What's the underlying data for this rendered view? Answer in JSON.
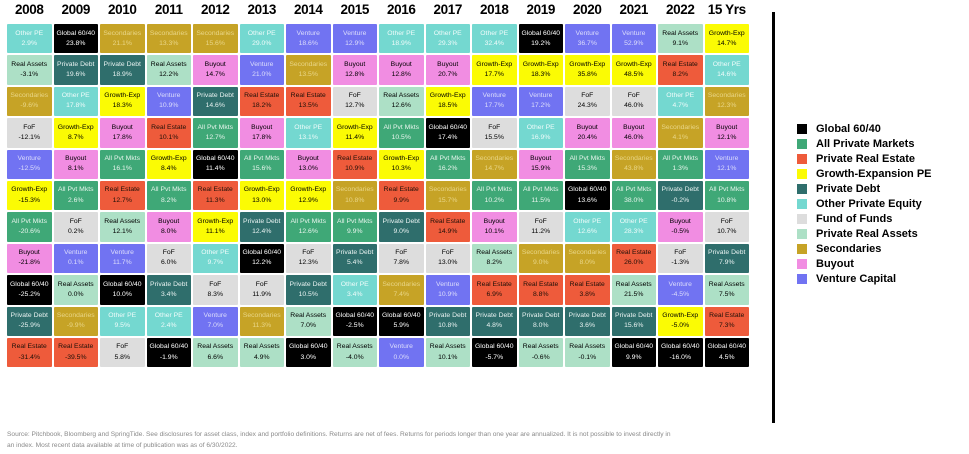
{
  "chart_data": {
    "type": "table",
    "description": "Periodic-table style matrix of private market asset class returns ranked best-to-worst per year",
    "asset_styles": {
      "global": {
        "short": "Global 60/40",
        "legend": "Global 60/40",
        "bg": "#000000",
        "fg": "#ffffff"
      },
      "allpvt": {
        "short": "All Pvt Mkts",
        "legend": "All Private Markets",
        "bg": "#3fa877",
        "fg": "#e7f4ec"
      },
      "realestate": {
        "short": "Real Estate",
        "legend": "Private Real Estate",
        "bg": "#ee5b3b",
        "fg": "#1e1008"
      },
      "growth": {
        "short": "Growth-Exp",
        "legend": "Growth-Expansion PE",
        "bg": "#fbfb04",
        "fg": "#000000"
      },
      "privdebt": {
        "short": "Private Debt",
        "legend": "Private Debt",
        "bg": "#2f6e6c",
        "fg": "#e8f2f1"
      },
      "otherpe": {
        "short": "Other PE",
        "legend": "Other Private Equity",
        "bg": "#74d8d0",
        "fg": "#effbfa"
      },
      "fof": {
        "short": "FoF",
        "legend": "Fund of Funds",
        "bg": "#dddddd",
        "fg": "#000000"
      },
      "realassets": {
        "short": "Real Assets",
        "legend": "Private Real Assets",
        "bg": "#ade0c6",
        "fg": "#000000"
      },
      "secondaries": {
        "short": "Secondaries",
        "legend": "Secondaries",
        "bg": "#c6a326",
        "fg": "#e9d687"
      },
      "buyout": {
        "short": "Buyout",
        "legend": "Buyout",
        "bg": "#f18de2",
        "fg": "#000000"
      },
      "venture": {
        "short": "Venture",
        "legend": "Venture Capital",
        "bg": "#7173f2",
        "fg": "#dcddfb"
      }
    },
    "columns": [
      {
        "label": "2008",
        "cells": [
          [
            "otherpe",
            "2.9%"
          ],
          [
            "realassets",
            "-3.1%"
          ],
          [
            "secondaries",
            "-9.6%"
          ],
          [
            "fof",
            "-12.1%"
          ],
          [
            "venture",
            "-12.5%"
          ],
          [
            "growth",
            "-15.3%"
          ],
          [
            "allpvt",
            "-20.6%"
          ],
          [
            "buyout",
            "-21.8%"
          ],
          [
            "global",
            "-25.2%"
          ],
          [
            "privdebt",
            "-25.9%"
          ],
          [
            "realestate",
            "-31.4%"
          ]
        ]
      },
      {
        "label": "2009",
        "cells": [
          [
            "global",
            "23.8%"
          ],
          [
            "privdebt",
            "19.6%"
          ],
          [
            "otherpe",
            "17.8%"
          ],
          [
            "growth",
            "8.7%"
          ],
          [
            "buyout",
            "8.1%"
          ],
          [
            "allpvt",
            "2.6%"
          ],
          [
            "fof",
            "0.2%"
          ],
          [
            "venture",
            "0.1%"
          ],
          [
            "realassets",
            "0.0%"
          ],
          [
            "secondaries",
            "-9.9%"
          ],
          [
            "realestate",
            "-39.5%"
          ]
        ]
      },
      {
        "label": "2010",
        "cells": [
          [
            "secondaries",
            "21.1%"
          ],
          [
            "privdebt",
            "18.9%"
          ],
          [
            "growth",
            "18.3%"
          ],
          [
            "buyout",
            "17.8%"
          ],
          [
            "allpvt",
            "16.1%"
          ],
          [
            "realestate",
            "12.7%"
          ],
          [
            "realassets",
            "12.1%"
          ],
          [
            "venture",
            "11.7%"
          ],
          [
            "global",
            "10.0%"
          ],
          [
            "otherpe",
            "9.5%"
          ],
          [
            "fof",
            "5.8%"
          ]
        ]
      },
      {
        "label": "2011",
        "cells": [
          [
            "secondaries",
            "13.3%"
          ],
          [
            "realassets",
            "12.2%"
          ],
          [
            "venture",
            "10.9%"
          ],
          [
            "realestate",
            "10.1%"
          ],
          [
            "growth",
            "8.4%"
          ],
          [
            "allpvt",
            "8.2%"
          ],
          [
            "buyout",
            "8.0%"
          ],
          [
            "fof",
            "6.0%"
          ],
          [
            "privdebt",
            "3.4%"
          ],
          [
            "otherpe",
            "2.4%"
          ],
          [
            "global",
            "-1.9%"
          ]
        ]
      },
      {
        "label": "2012",
        "cells": [
          [
            "secondaries",
            "15.6%"
          ],
          [
            "buyout",
            "14.7%"
          ],
          [
            "privdebt",
            "14.6%"
          ],
          [
            "allpvt",
            "12.7%"
          ],
          [
            "global",
            "11.4%"
          ],
          [
            "realestate",
            "11.3%"
          ],
          [
            "growth",
            "11.1%"
          ],
          [
            "otherpe",
            "9.7%"
          ],
          [
            "fof",
            "8.3%"
          ],
          [
            "venture",
            "7.0%"
          ],
          [
            "realassets",
            "6.6%"
          ]
        ]
      },
      {
        "label": "2013",
        "cells": [
          [
            "otherpe",
            "29.0%"
          ],
          [
            "venture",
            "21.0%"
          ],
          [
            "realestate",
            "18.2%"
          ],
          [
            "buyout",
            "17.8%"
          ],
          [
            "allpvt",
            "15.6%"
          ],
          [
            "growth",
            "13.0%"
          ],
          [
            "privdebt",
            "12.4%"
          ],
          [
            "global",
            "12.2%"
          ],
          [
            "fof",
            "11.9%"
          ],
          [
            "secondaries",
            "11.3%"
          ],
          [
            "realassets",
            "4.9%"
          ]
        ]
      },
      {
        "label": "2014",
        "cells": [
          [
            "venture",
            "18.6%"
          ],
          [
            "secondaries",
            "13.5%"
          ],
          [
            "realestate",
            "13.5%"
          ],
          [
            "otherpe",
            "13.1%"
          ],
          [
            "buyout",
            "13.0%"
          ],
          [
            "growth",
            "12.9%"
          ],
          [
            "allpvt",
            "12.6%"
          ],
          [
            "fof",
            "12.3%"
          ],
          [
            "privdebt",
            "10.5%"
          ],
          [
            "realassets",
            "7.0%"
          ],
          [
            "global",
            "3.0%"
          ]
        ]
      },
      {
        "label": "2015",
        "cells": [
          [
            "venture",
            "12.9%"
          ],
          [
            "buyout",
            "12.8%"
          ],
          [
            "fof",
            "12.7%"
          ],
          [
            "growth",
            "11.4%"
          ],
          [
            "realestate",
            "10.9%"
          ],
          [
            "secondaries",
            "10.8%"
          ],
          [
            "allpvt",
            "9.9%"
          ],
          [
            "privdebt",
            "5.4%"
          ],
          [
            "otherpe",
            "3.4%"
          ],
          [
            "global",
            "-2.5%"
          ],
          [
            "realassets",
            "-4.0%"
          ]
        ]
      },
      {
        "label": "2016",
        "cells": [
          [
            "otherpe",
            "18.9%"
          ],
          [
            "buyout",
            "12.8%"
          ],
          [
            "realassets",
            "12.6%"
          ],
          [
            "allpvt",
            "10.5%"
          ],
          [
            "growth",
            "10.3%"
          ],
          [
            "realestate",
            "9.9%"
          ],
          [
            "privdebt",
            "9.0%"
          ],
          [
            "fof",
            "7.8%"
          ],
          [
            "secondaries",
            "7.4%"
          ],
          [
            "global",
            "5.9%"
          ],
          [
            "venture",
            "0.0%"
          ]
        ]
      },
      {
        "label": "2017",
        "cells": [
          [
            "otherpe",
            "29.3%"
          ],
          [
            "buyout",
            "20.7%"
          ],
          [
            "growth",
            "18.5%"
          ],
          [
            "global",
            "17.4%"
          ],
          [
            "allpvt",
            "16.2%"
          ],
          [
            "secondaries",
            "15.7%"
          ],
          [
            "realestate",
            "14.9%"
          ],
          [
            "fof",
            "13.0%"
          ],
          [
            "venture",
            "10.9%"
          ],
          [
            "privdebt",
            "10.8%"
          ],
          [
            "realassets",
            "10.1%"
          ]
        ]
      },
      {
        "label": "2018",
        "cells": [
          [
            "otherpe",
            "32.4%"
          ],
          [
            "growth",
            "17.7%"
          ],
          [
            "venture",
            "17.7%"
          ],
          [
            "fof",
            "15.5%"
          ],
          [
            "secondaries",
            "14.7%"
          ],
          [
            "allpvt",
            "10.2%"
          ],
          [
            "buyout",
            "10.1%"
          ],
          [
            "realassets",
            "8.2%"
          ],
          [
            "realestate",
            "6.9%"
          ],
          [
            "privdebt",
            "4.8%"
          ],
          [
            "global",
            "-5.7%"
          ]
        ]
      },
      {
        "label": "2019",
        "cells": [
          [
            "global",
            "19.2%"
          ],
          [
            "growth",
            "18.3%"
          ],
          [
            "venture",
            "17.2%"
          ],
          [
            "otherpe",
            "16.9%"
          ],
          [
            "buyout",
            "15.9%"
          ],
          [
            "allpvt",
            "11.5%"
          ],
          [
            "fof",
            "11.2%"
          ],
          [
            "secondaries",
            "9.0%"
          ],
          [
            "realestate",
            "8.8%"
          ],
          [
            "privdebt",
            "8.0%"
          ],
          [
            "realassets",
            "-0.6%"
          ]
        ]
      },
      {
        "label": "2020",
        "cells": [
          [
            "venture",
            "36.7%"
          ],
          [
            "growth",
            "35.8%"
          ],
          [
            "fof",
            "24.3%"
          ],
          [
            "buyout",
            "20.4%"
          ],
          [
            "allpvt",
            "15.3%"
          ],
          [
            "global",
            "13.6%"
          ],
          [
            "otherpe",
            "12.6%"
          ],
          [
            "secondaries",
            "8.0%"
          ],
          [
            "realestate",
            "3.8%"
          ],
          [
            "privdebt",
            "3.6%"
          ],
          [
            "realassets",
            "-0.1%"
          ]
        ]
      },
      {
        "label": "2021",
        "cells": [
          [
            "venture",
            "52.9%"
          ],
          [
            "growth",
            "48.5%"
          ],
          [
            "fof",
            "46.0%"
          ],
          [
            "buyout",
            "46.0%"
          ],
          [
            "secondaries",
            "43.8%"
          ],
          [
            "allpvt",
            "38.0%"
          ],
          [
            "otherpe",
            "28.3%"
          ],
          [
            "realestate",
            "26.0%"
          ],
          [
            "realassets",
            "21.5%"
          ],
          [
            "privdebt",
            "15.6%"
          ],
          [
            "global",
            "9.9%"
          ]
        ]
      },
      {
        "label": "2022",
        "cells": [
          [
            "realassets",
            "9.1%"
          ],
          [
            "realestate",
            "8.2%"
          ],
          [
            "otherpe",
            "4.7%"
          ],
          [
            "secondaries",
            "4.1%"
          ],
          [
            "allpvt",
            "1.3%"
          ],
          [
            "privdebt",
            "-0.2%"
          ],
          [
            "buyout",
            "-0.5%"
          ],
          [
            "fof",
            "-1.3%"
          ],
          [
            "venture",
            "-4.5%"
          ],
          [
            "growth",
            "-5.0%"
          ],
          [
            "global",
            "-16.0%"
          ]
        ]
      },
      {
        "label": "15 Yrs",
        "cells": [
          [
            "growth",
            "14.7%"
          ],
          [
            "otherpe",
            "14.6%"
          ],
          [
            "secondaries",
            "12.3%"
          ],
          [
            "buyout",
            "12.1%"
          ],
          [
            "venture",
            "12.1%"
          ],
          [
            "allpvt",
            "10.8%"
          ],
          [
            "fof",
            "10.7%"
          ],
          [
            "privdebt",
            "7.9%"
          ],
          [
            "realassets",
            "7.5%"
          ],
          [
            "realestate",
            "7.3%"
          ],
          [
            "global",
            "4.5%"
          ]
        ]
      }
    ]
  },
  "legend": {
    "items": [
      {
        "key": "global"
      },
      {
        "key": "allpvt"
      },
      {
        "key": "realestate"
      },
      {
        "key": "growth"
      },
      {
        "key": "privdebt"
      },
      {
        "key": "otherpe"
      },
      {
        "key": "fof"
      },
      {
        "key": "realassets"
      },
      {
        "key": "secondaries"
      },
      {
        "key": "buyout"
      },
      {
        "key": "venture"
      }
    ]
  },
  "footer": {
    "line1": "Source: Pitchbook, Bloomberg and SpringTide. See disclosures for asset class, index and portfolio definitions. Returns are net of fees. Returns for periods longer than one year are annualized. It is not possible to invest directly in",
    "line2": "an index. Most recent data available at time of publication was as of 6/30/2022."
  }
}
